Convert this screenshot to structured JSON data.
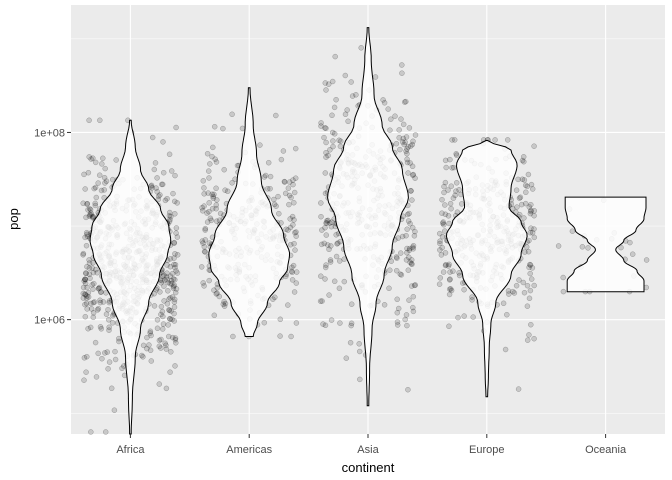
{
  "chart_data": {
    "type": "violin",
    "title": "",
    "xlabel": "continent",
    "ylabel": "pop",
    "y_scale": "log10",
    "ylim": [
      60000,
      2300000000
    ],
    "y_ticks": [
      {
        "value": 1000000,
        "label": "1e+06"
      },
      {
        "value": 100000000,
        "label": "1e+08"
      }
    ],
    "grid": true,
    "categories": [
      "Africa",
      "Americas",
      "Asia",
      "Europe",
      "Oceania"
    ],
    "violins": [
      {
        "category": "Africa",
        "min": 60000,
        "max": 135000000,
        "density_profile": [
          [
            60000,
            0.02
          ],
          [
            150000,
            0.05
          ],
          [
            400000,
            0.12
          ],
          [
            800000,
            0.25
          ],
          [
            1500000,
            0.45
          ],
          [
            3000000,
            0.72
          ],
          [
            5000000,
            0.92
          ],
          [
            7000000,
            1.0
          ],
          [
            10000000,
            0.95
          ],
          [
            15000000,
            0.75
          ],
          [
            25000000,
            0.45
          ],
          [
            40000000,
            0.25
          ],
          [
            70000000,
            0.12
          ],
          [
            135000000,
            0.02
          ]
        ]
      },
      {
        "category": "Americas",
        "min": 660000,
        "max": 300000000,
        "density_profile": [
          [
            660000,
            0.1
          ],
          [
            900000,
            0.2
          ],
          [
            1500000,
            0.45
          ],
          [
            2500000,
            0.75
          ],
          [
            3500000,
            0.95
          ],
          [
            5000000,
            1.0
          ],
          [
            8000000,
            0.85
          ],
          [
            15000000,
            0.55
          ],
          [
            30000000,
            0.3
          ],
          [
            60000000,
            0.18
          ],
          [
            120000000,
            0.1
          ],
          [
            300000000,
            0.02
          ]
        ]
      },
      {
        "category": "Asia",
        "min": 120000,
        "max": 1320000000,
        "density_profile": [
          [
            120000,
            0.02
          ],
          [
            300000,
            0.04
          ],
          [
            800000,
            0.1
          ],
          [
            1500000,
            0.2
          ],
          [
            3000000,
            0.4
          ],
          [
            6000000,
            0.6
          ],
          [
            12000000,
            0.8
          ],
          [
            20000000,
            1.0
          ],
          [
            40000000,
            0.85
          ],
          [
            70000000,
            0.6
          ],
          [
            120000000,
            0.35
          ],
          [
            250000000,
            0.15
          ],
          [
            600000000,
            0.08
          ],
          [
            1320000000,
            0.02
          ]
        ]
      },
      {
        "category": "Europe",
        "min": 150000,
        "max": 82000000,
        "density_profile": [
          [
            150000,
            0.02
          ],
          [
            250000,
            0.04
          ],
          [
            500000,
            0.06
          ],
          [
            900000,
            0.1
          ],
          [
            1500000,
            0.22
          ],
          [
            3000000,
            0.6
          ],
          [
            5000000,
            0.85
          ],
          [
            8000000,
            1.0
          ],
          [
            11000000,
            0.85
          ],
          [
            16000000,
            0.55
          ],
          [
            25000000,
            0.6
          ],
          [
            45000000,
            0.75
          ],
          [
            65000000,
            0.6
          ],
          [
            82000000,
            0.02
          ]
        ]
      },
      {
        "category": "Oceania",
        "min": 1990000,
        "max": 20400000,
        "density_profile": [
          [
            1990000,
            0.95
          ],
          [
            2600000,
            0.95
          ],
          [
            3300000,
            0.78
          ],
          [
            4300000,
            0.45
          ],
          [
            5600000,
            0.25
          ],
          [
            7000000,
            0.45
          ],
          [
            9000000,
            0.75
          ],
          [
            12000000,
            0.95
          ],
          [
            16000000,
            1.0
          ],
          [
            20400000,
            1.0
          ]
        ]
      }
    ],
    "points": {
      "Africa": {
        "count": 624,
        "log10_center": 6.6,
        "log10_sd": 0.55,
        "log10_min": 4.8,
        "log10_max": 8.13
      },
      "Americas": {
        "count": 300,
        "log10_center": 6.85,
        "log10_sd": 0.5,
        "log10_min": 5.82,
        "log10_max": 8.48
      },
      "Asia": {
        "count": 396,
        "log10_center": 7.2,
        "log10_sd": 0.65,
        "log10_min": 5.08,
        "log10_max": 9.12
      },
      "Europe": {
        "count": 360,
        "log10_center": 6.95,
        "log10_sd": 0.45,
        "log10_min": 5.18,
        "log10_max": 7.92
      },
      "Oceania": {
        "count": 24,
        "log10_center": 6.8,
        "log10_sd": 0.3,
        "log10_min": 6.3,
        "log10_max": 7.31
      }
    },
    "colors": {
      "panel_bg": "#ebebeb",
      "grid_major": "#ffffff",
      "violin_fill": "#ffffff",
      "violin_stroke": "#000000",
      "point_fill": "rgba(0,0,0,0.15)",
      "point_stroke": "rgba(0,0,0,0.3)"
    }
  }
}
